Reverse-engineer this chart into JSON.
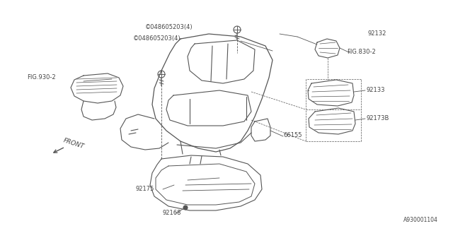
{
  "bg_color": "#ffffff",
  "line_color": "#555555",
  "text_color": "#444444",
  "diagram_id": "A930001104",
  "labels": {
    "fig930": "FIG.930-2",
    "fig830": "FIG.830-2",
    "bolt1": "©048605203(4)",
    "bolt2": "©048605203(4)",
    "p92132": "92132",
    "p92133": "92133",
    "p92173B": "92173B",
    "p66155": "66155",
    "p92175": "92175",
    "p92168": "92168",
    "front": "FRONT"
  }
}
